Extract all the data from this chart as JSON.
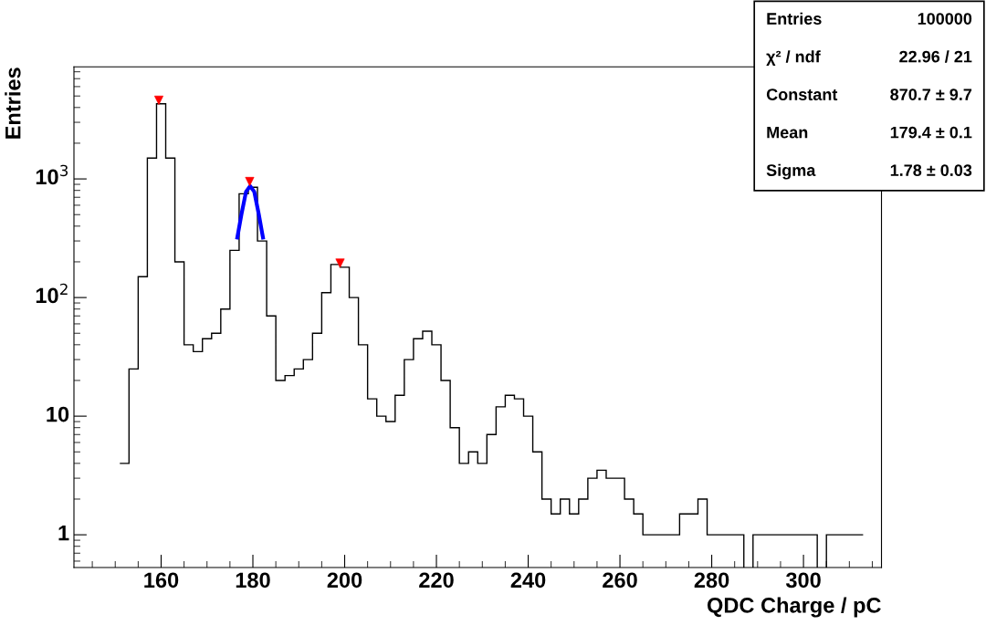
{
  "chart_data": {
    "type": "histogram",
    "xlabel": "QDC Charge / pC",
    "ylabel": "Entries",
    "color": "#000000",
    "bins": [
      151,
      153,
      155,
      157,
      159,
      161,
      163,
      165,
      167,
      169,
      171,
      173,
      175,
      177,
      179,
      181,
      183,
      185,
      187,
      189,
      191,
      193,
      195,
      197,
      199,
      201,
      203,
      205,
      207,
      209,
      211,
      213,
      215,
      217,
      219,
      221,
      223,
      225,
      227,
      229,
      231,
      233,
      235,
      237,
      239,
      241,
      243,
      245,
      247,
      249,
      251,
      253,
      255,
      257,
      259,
      261,
      263,
      265,
      267,
      269,
      271,
      273,
      275,
      277,
      279,
      281,
      283,
      285,
      287,
      289,
      291,
      293,
      295,
      297,
      299,
      301,
      303,
      305,
      307,
      309,
      311,
      313
    ],
    "values": [
      4,
      25,
      150,
      1500,
      4300,
      1500,
      200,
      40,
      35,
      45,
      50,
      80,
      250,
      750,
      850,
      300,
      70,
      20,
      22,
      25,
      30,
      50,
      110,
      190,
      180,
      100,
      40,
      14,
      10,
      9,
      15,
      30,
      45,
      52,
      40,
      20,
      8,
      4,
      5,
      4,
      7,
      12,
      15,
      14,
      10,
      5,
      2,
      1.5,
      2,
      1.5,
      2,
      3,
      3.5,
      3,
      3,
      2,
      1.5,
      1,
      1,
      1,
      1,
      1.5,
      1.5,
      2,
      1,
      1,
      1,
      1,
      null,
      1,
      1,
      1,
      1,
      1,
      1,
      1,
      null,
      1,
      1,
      1,
      1
    ],
    "series": [
      {
        "type": "line",
        "color": "#0000ff",
        "x": [
          176.6,
          177.5,
          178.5,
          179.4,
          180.3,
          181.3,
          182.2
        ],
        "values": [
          320,
          500,
          780,
          870,
          780,
          500,
          320
        ]
      },
      {
        "type": "scatter",
        "color": "#ff0000",
        "marker": "triangle",
        "x": [
          159.5,
          179.3,
          199
        ],
        "values": [
          4600,
          950,
          195
        ]
      }
    ],
    "log": true,
    "xlim": [
      141,
      317
    ],
    "ylim": [
      0.53,
      8800
    ],
    "xticks": [
      160,
      180,
      200,
      220,
      240,
      260,
      280,
      300
    ],
    "yticks": [
      1,
      10,
      {
        "value": 100,
        "label": "10$^{2}$"
      },
      {
        "value": 1000,
        "label": "10$^{3}$"
      }
    ],
    "grid": false,
    "legend": false,
    "annotations": [
      "Entries",
      "100000",
      "χ² / ndf",
      "22.96 / 21",
      "Constant",
      "870.7 ± 9.7",
      "Mean",
      "179.4 ± 0.1",
      "Sigma",
      "1.78 ± 0.03"
    ]
  }
}
